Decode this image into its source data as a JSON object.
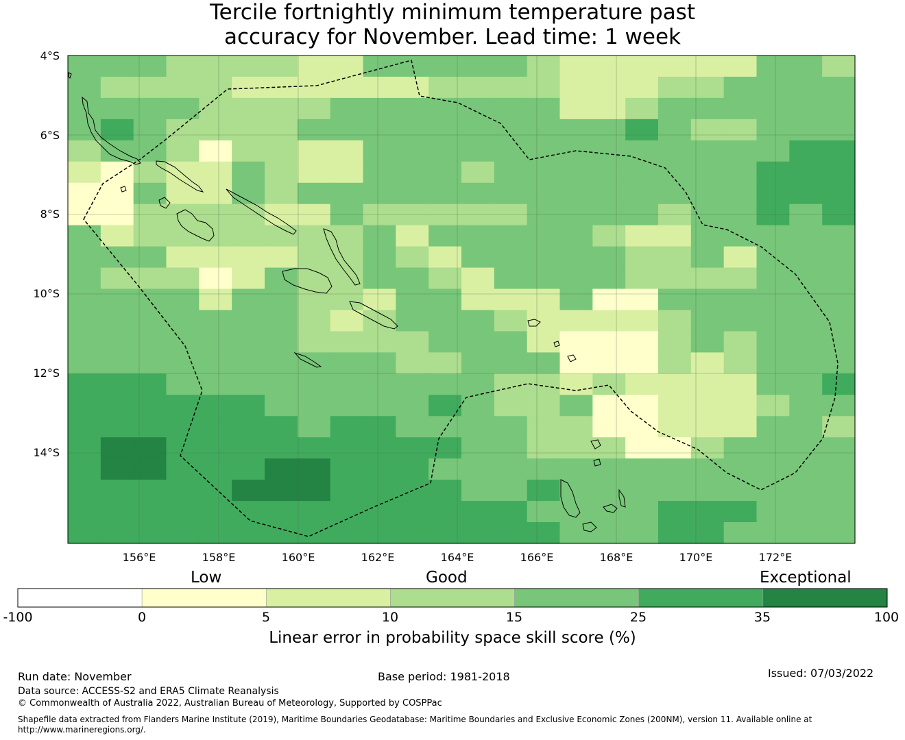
{
  "title": {
    "line1": "Tercile fortnightly minimum temperature past",
    "line2": "accuracy for November. Lead time: 1 week"
  },
  "map": {
    "lat_ticks": [
      "4°S",
      "6°S",
      "8°S",
      "10°S",
      "12°S",
      "14°S"
    ],
    "lon_ticks": [
      "156°E",
      "158°E",
      "160°E",
      "162°E",
      "164°E",
      "166°E",
      "168°E",
      "170°E",
      "172°E"
    ],
    "grid": {
      "cols": 24,
      "rows": 23,
      "levels": [
        "444333322444443222222443",
        "433332222223333222334444",
        "444433334444444223444444",
        "454333344444444445433444",
        "344313322444444444444455",
        "213224322444344444444555",
        "114224344444444444444555",
        "113333224333334444344545",
        "423333333424444432244444",
        "444222233432444443342444",
        "433312433443244443333444",
        "444424433244222411444444",
        "444444432344432222344444",
        "444444433334442111343444",
        "444444444433444111323444",
        "555444444444433232222445",
        "555555444445433411222344",
        "555555545544443311222443",
        "566555555555443331134444",
        "566555665554444444444444",
        "555556665555445444444444",
        "555555555555554444555444",
        "555555555555555444554444"
      ]
    },
    "colors": [
      "#ffffff",
      "#ffffcc",
      "#d9f0a3",
      "#addd8e",
      "#78c679",
      "#41ab5d",
      "#238443"
    ]
  },
  "legend": {
    "category_low": "Low",
    "category_good": "Good",
    "category_exceptional": "Exceptional",
    "ticks": [
      "-100",
      "0",
      "5",
      "10",
      "15",
      "25",
      "35",
      "100"
    ],
    "title": "Linear error in probability space skill score (%)"
  },
  "footer": {
    "run_date": "Run date: November",
    "base_period": "Base period: 1981-2018",
    "issued": "Issued: 07/03/2022",
    "data_source": "Data source: ACCESS-S2 and ERA5 Climate Reanalysis",
    "copyright": "© Commonwealth of Australia 2022, Australian Bureau of Meteorology, Supported by COSPPac",
    "shapefile_line1": "Shapefile data extracted from Flanders Marine Institute (2019), Maritime Boundaries Geodatabase: Maritime Boundaries and Exclusive Economic Zones (200NM), version 11. Available online at",
    "shapefile_line2": "http://www.marineregions.org/."
  }
}
